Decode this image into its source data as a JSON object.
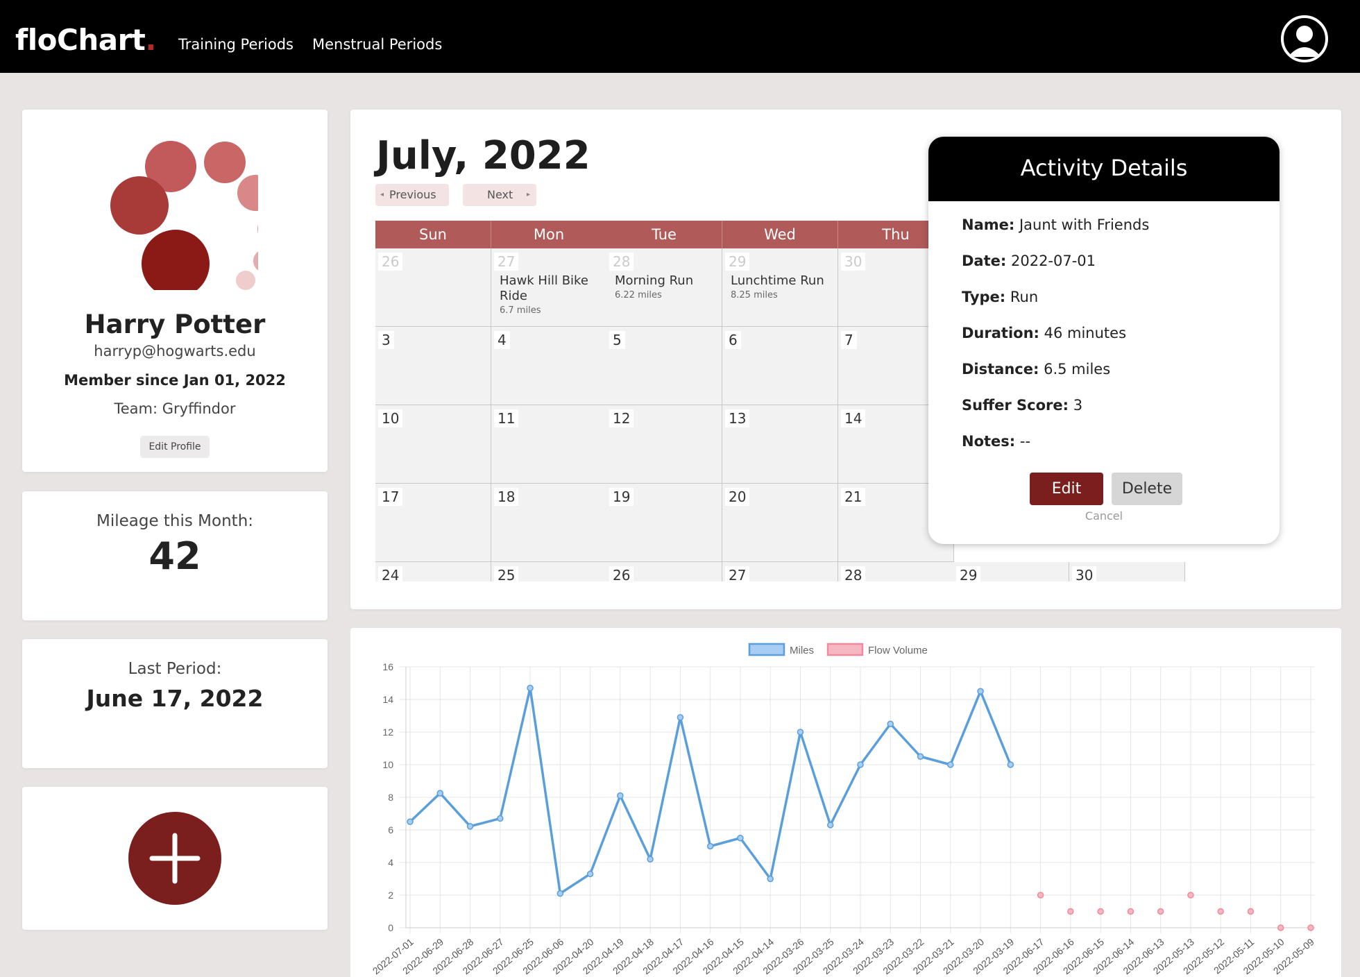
{
  "app": {
    "logo": "floChart",
    "logo_dot": ".",
    "nav": [
      "Training Periods",
      "Menstrual Periods"
    ]
  },
  "profile": {
    "name": "Harry Potter",
    "email": "harryp@hogwarts.edu",
    "member_since": "Member since Jan 01, 2022",
    "team": "Team: Gryffindor",
    "edit_button": "Edit Profile"
  },
  "mileage": {
    "label": "Mileage this Month:",
    "value": "42"
  },
  "last_period": {
    "label": "Last Period:",
    "value": "June 17, 2022"
  },
  "calendar": {
    "title": "July, 2022",
    "prev_label": "Previous",
    "next_label": "Next",
    "weekdays": [
      "Sun",
      "Mon",
      "Tue",
      "Wed",
      "Thu"
    ],
    "weeks": [
      [
        {
          "day": "26",
          "muted": true
        },
        {
          "day": "27",
          "muted": true,
          "event": "Hawk Hill Bike Ride",
          "miles": "6.7 miles"
        },
        {
          "day": "28",
          "muted": true,
          "event": "Morning Run",
          "miles": "6.22 miles"
        },
        {
          "day": "29",
          "muted": true,
          "event": "Lunchtime Run",
          "miles": "8.25 miles"
        },
        {
          "day": "30",
          "muted": true
        }
      ],
      [
        {
          "day": "3"
        },
        {
          "day": "4"
        },
        {
          "day": "5"
        },
        {
          "day": "6"
        },
        {
          "day": "7"
        }
      ],
      [
        {
          "day": "10"
        },
        {
          "day": "11"
        },
        {
          "day": "12"
        },
        {
          "day": "13"
        },
        {
          "day": "14"
        }
      ],
      [
        {
          "day": "17"
        },
        {
          "day": "18"
        },
        {
          "day": "19"
        },
        {
          "day": "20"
        },
        {
          "day": "21"
        }
      ],
      [
        {
          "day": "24"
        },
        {
          "day": "25"
        },
        {
          "day": "26"
        },
        {
          "day": "27"
        },
        {
          "day": "28"
        },
        {
          "day": "29"
        },
        {
          "day": "30"
        }
      ]
    ]
  },
  "activity": {
    "title": "Activity Details",
    "fields": [
      {
        "label": "Name:",
        "value": "Jaunt with Friends"
      },
      {
        "label": "Date:",
        "value": "2022-07-01"
      },
      {
        "label": "Type:",
        "value": "Run"
      },
      {
        "label": "Duration:",
        "value": "46 minutes"
      },
      {
        "label": "Distance:",
        "value": "6.5 miles"
      },
      {
        "label": "Suffer Score:",
        "value": "3"
      },
      {
        "label": "Notes:",
        "value": "--"
      }
    ],
    "edit_label": "Edit",
    "delete_label": "Delete",
    "cancel_label": "Cancel"
  },
  "colors": {
    "brand": "#7a1f1d",
    "calendar_header": "#b05b59",
    "miles_line": "#5a9edb",
    "miles_fill": "#a8cdf2",
    "flow_point": "#f08a9c",
    "flow_fill": "#f7b7c2"
  },
  "chart_data": {
    "type": "line",
    "x": [
      "2022-07-01",
      "2022-06-29",
      "2022-06-28",
      "2022-06-27",
      "2022-06-25",
      "2022-06-06",
      "2022-04-20",
      "2022-04-19",
      "2022-04-18",
      "2022-04-17",
      "2022-04-16",
      "2022-04-15",
      "2022-04-14",
      "2022-03-26",
      "2022-03-25",
      "2022-03-24",
      "2022-03-23",
      "2022-03-22",
      "2022-03-21",
      "2022-03-20",
      "2022-03-19",
      "2022-06-17",
      "2022-06-16",
      "2022-06-15",
      "2022-06-14",
      "2022-06-13",
      "2022-05-13",
      "2022-05-12",
      "2022-05-11",
      "2022-05-10",
      "2022-05-09"
    ],
    "series": [
      {
        "name": "Miles",
        "values": [
          6.5,
          8.25,
          6.22,
          6.7,
          14.7,
          2.1,
          3.3,
          8.1,
          4.2,
          12.9,
          5.0,
          5.5,
          3.0,
          12.0,
          6.3,
          10.0,
          12.5,
          10.5,
          10.0,
          14.5,
          10.0,
          null,
          null,
          null,
          null,
          null,
          null,
          null,
          null,
          null,
          null
        ]
      },
      {
        "name": "Flow Volume",
        "values": [
          null,
          null,
          null,
          null,
          null,
          null,
          null,
          null,
          null,
          null,
          null,
          null,
          null,
          null,
          null,
          null,
          null,
          null,
          null,
          null,
          null,
          2,
          1,
          1,
          1,
          1,
          2,
          1,
          1,
          0,
          0
        ]
      }
    ],
    "ylim": [
      0,
      16
    ],
    "y_ticks": [
      0,
      2,
      4,
      6,
      8,
      10,
      12,
      14,
      16
    ],
    "legend": "top-center",
    "grid": true
  }
}
